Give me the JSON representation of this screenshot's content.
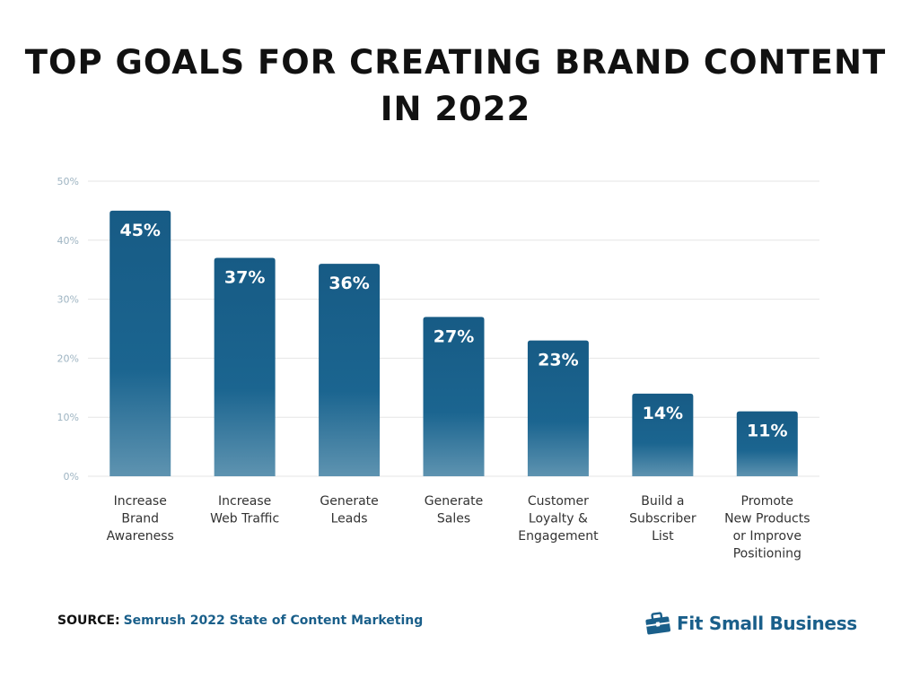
{
  "title_line1": "TOP GOALS FOR CREATING BRAND CONTENT",
  "title_line2": "IN 2022",
  "chart_data": {
    "type": "bar",
    "title": "TOP GOALS FOR CREATING BRAND CONTENT IN 2022",
    "categories": [
      [
        "Increase",
        "Brand",
        "Awareness"
      ],
      [
        "Increase",
        "Web Traffic"
      ],
      [
        "Generate",
        "Leads"
      ],
      [
        "Generate",
        "Sales"
      ],
      [
        "Customer",
        "Loyalty &",
        "Engagement"
      ],
      [
        "Build a",
        "Subscriber",
        "List"
      ],
      [
        "Promote",
        "New Products",
        "or Improve",
        "Positioning"
      ]
    ],
    "values": [
      45,
      37,
      36,
      27,
      23,
      14,
      11
    ],
    "data_labels": [
      "45%",
      "37%",
      "36%",
      "27%",
      "23%",
      "14%",
      "11%"
    ],
    "y_ticks": [
      0,
      10,
      20,
      30,
      40,
      50
    ],
    "y_tick_labels": [
      "0%",
      "10%",
      "20%",
      "30%",
      "40%",
      "50%"
    ],
    "ylim": [
      0,
      50
    ],
    "grid": true,
    "legend": "none",
    "xlabel": "",
    "ylabel": "",
    "colors": {
      "bar_top": "#175b85",
      "bar_mid": "#1b6590",
      "bar_bottom": "#5e93b0",
      "grid": "#e6e6e6",
      "tick_text": "#9eb4c2",
      "bar_label": "#ffffff",
      "category_text": "#333333"
    }
  },
  "footer": {
    "source_label": "SOURCE:",
    "source_value": "Semrush 2022 State of Content Marketing",
    "brand_name": "Fit Small Business",
    "brand_icon": "briefcase-icon",
    "brand_color": "#1a5f8a"
  }
}
